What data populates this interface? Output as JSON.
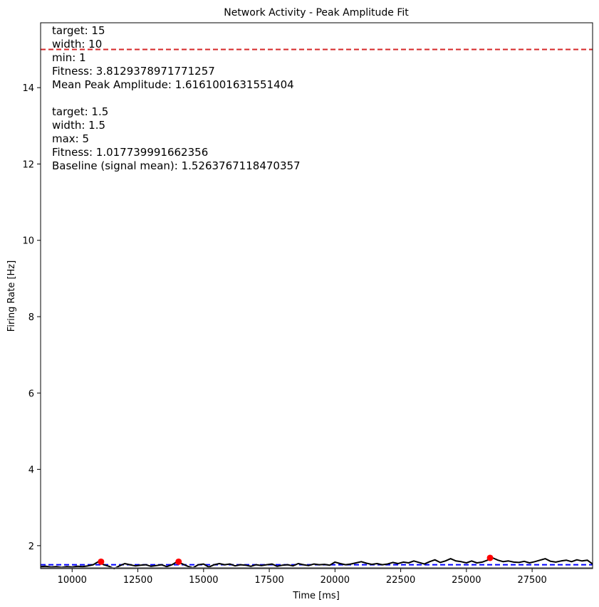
{
  "chart_data": {
    "type": "line",
    "title": "Network Activity - Peak Amplitude Fit",
    "xlabel": "Time [ms]",
    "ylabel": "Firing Rate [Hz]",
    "xlim": [
      8800,
      29800
    ],
    "ylim": [
      1.4,
      15.7
    ],
    "xticks": [
      10000,
      12500,
      15000,
      17500,
      20000,
      22500,
      25000,
      27500
    ],
    "yticks": [
      2,
      4,
      6,
      8,
      10,
      12,
      14
    ],
    "grid": false,
    "series": [
      {
        "role": "firing-rate",
        "color": "#000000",
        "x": [
          8800,
          9000,
          9200,
          9400,
          9600,
          9800,
          10000,
          10200,
          10400,
          10600,
          10800,
          11000,
          11200,
          11400,
          11600,
          11800,
          12000,
          12200,
          12400,
          12600,
          12800,
          13000,
          13200,
          13400,
          13600,
          13800,
          14000,
          14200,
          14400,
          14600,
          14800,
          15000,
          15200,
          15400,
          15600,
          15800,
          16000,
          16200,
          16400,
          16600,
          16800,
          17000,
          17200,
          17400,
          17600,
          17800,
          18000,
          18200,
          18400,
          18600,
          18800,
          19000,
          19200,
          19400,
          19600,
          19800,
          20000,
          20200,
          20400,
          20600,
          20800,
          21000,
          21200,
          21400,
          21600,
          21800,
          22000,
          22200,
          22400,
          22600,
          22800,
          23000,
          23200,
          23400,
          23600,
          23800,
          24000,
          24200,
          24400,
          24600,
          24800,
          25000,
          25200,
          25400,
          25600,
          25800,
          26000,
          26200,
          26400,
          26600,
          26800,
          27000,
          27200,
          27400,
          27600,
          27800,
          28000,
          28200,
          28400,
          28600,
          28800,
          29000,
          29200,
          29400,
          29600,
          29800
        ],
        "y": [
          1.45,
          1.46,
          1.44,
          1.45,
          1.43,
          1.45,
          1.44,
          1.46,
          1.45,
          1.47,
          1.5,
          1.58,
          1.5,
          1.46,
          1.4,
          1.47,
          1.53,
          1.5,
          1.47,
          1.49,
          1.5,
          1.46,
          1.48,
          1.5,
          1.45,
          1.5,
          1.58,
          1.52,
          1.46,
          1.42,
          1.5,
          1.52,
          1.44,
          1.5,
          1.53,
          1.5,
          1.52,
          1.47,
          1.5,
          1.49,
          1.46,
          1.5,
          1.48,
          1.5,
          1.52,
          1.46,
          1.49,
          1.5,
          1.47,
          1.53,
          1.5,
          1.48,
          1.52,
          1.5,
          1.51,
          1.49,
          1.57,
          1.53,
          1.5,
          1.52,
          1.55,
          1.58,
          1.54,
          1.51,
          1.53,
          1.5,
          1.52,
          1.56,
          1.53,
          1.57,
          1.55,
          1.6,
          1.56,
          1.52,
          1.58,
          1.63,
          1.56,
          1.6,
          1.66,
          1.6,
          1.58,
          1.55,
          1.6,
          1.55,
          1.57,
          1.62,
          1.68,
          1.62,
          1.58,
          1.6,
          1.57,
          1.56,
          1.59,
          1.55,
          1.58,
          1.62,
          1.66,
          1.59,
          1.57,
          1.6,
          1.62,
          1.58,
          1.63,
          1.6,
          1.62,
          1.52
        ]
      },
      {
        "role": "baseline",
        "color": "#808080",
        "x": [
          8800,
          29800
        ],
        "y": [
          1.42,
          1.42
        ]
      }
    ],
    "peaks": {
      "color": "#ff0000",
      "x": [
        11100,
        14050,
        25900
      ],
      "y": [
        1.58,
        1.58,
        1.68
      ]
    },
    "hlines": [
      {
        "y": 15.0,
        "color": "#d62728",
        "style": "dashed"
      },
      {
        "y": 1.5,
        "color": "#0000ff",
        "style": "dashed"
      }
    ],
    "annotations": [
      "target: 15",
      "width: 10",
      "min: 1",
      "Fitness: 3.8129378971771257",
      "Mean Peak Amplitude: 1.6161001631551404",
      "",
      "target: 1.5",
      "width: 1.5",
      "max: 5",
      "Fitness: 1.017739991662356",
      "Baseline (signal mean): 1.5263767118470357"
    ]
  }
}
